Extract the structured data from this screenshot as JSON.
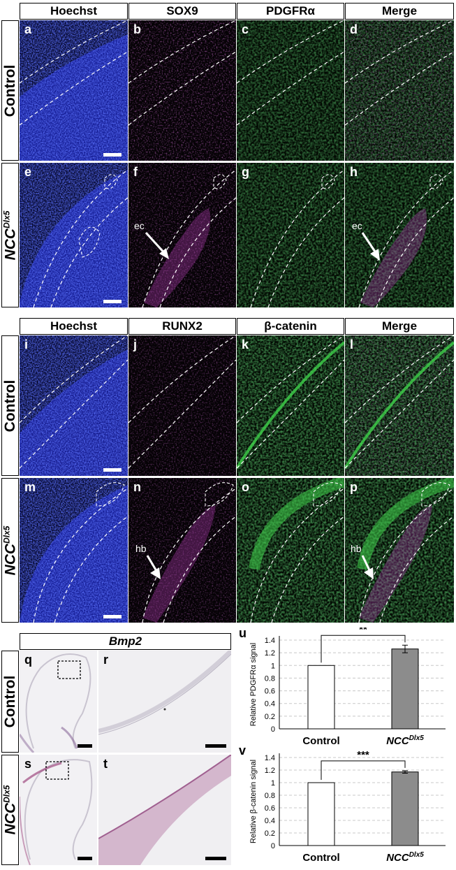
{
  "top_headers": [
    "Hoechst",
    "SOX9",
    "PDGFRα",
    "Merge"
  ],
  "mid_headers": [
    "Hoechst",
    "RUNX2",
    "β-catenin",
    "Merge"
  ],
  "row_labels": {
    "control": "Control",
    "ncc_base": "NCC",
    "ncc_sup": "Dlx5"
  },
  "letters_top": [
    "a",
    "b",
    "c",
    "d",
    "e",
    "f",
    "g",
    "h"
  ],
  "letters_mid": [
    "i",
    "j",
    "k",
    "l",
    "m",
    "n",
    "o",
    "p"
  ],
  "letters_bottom": [
    "q",
    "r",
    "s",
    "t"
  ],
  "annotations": {
    "ec": "ec",
    "hb": "hb"
  },
  "bmp2_header": "Bmp2",
  "colors": {
    "hoechst": "#2a3ad8",
    "sox9": "#c040c0",
    "pdgfra": "#2fa83a",
    "runx2": "#c040c0",
    "bcatenin": "#38b848",
    "bar_control": "#ffffff",
    "bar_mutant": "#8c8c8c"
  },
  "chart_data": [
    {
      "type": "bar",
      "panel": "u",
      "categories": [
        "Control",
        "NCC^Dlx5"
      ],
      "category_labels": {
        "control": "Control",
        "mutant_base": "NCC",
        "mutant_sup": "Dlx5"
      },
      "values": [
        1.0,
        1.26
      ],
      "errors": [
        0.0,
        0.06
      ],
      "ylabel": "Relative PDGFRα signal",
      "ylim": [
        0,
        1.4
      ],
      "yticks": [
        "0",
        "0.2",
        "0.4",
        "0.6",
        "0.8",
        "1",
        "1.2",
        "1.4"
      ],
      "significance": "**",
      "grid": true
    },
    {
      "type": "bar",
      "panel": "v",
      "categories": [
        "Control",
        "NCC^Dlx5"
      ],
      "category_labels": {
        "control": "Control",
        "mutant_base": "NCC",
        "mutant_sup": "Dlx5"
      },
      "values": [
        1.0,
        1.17
      ],
      "errors": [
        0.0,
        0.02
      ],
      "ylabel": "Relative β-catenin signal",
      "ylim": [
        0,
        1.4
      ],
      "yticks": [
        "0",
        "0.2",
        "0.4",
        "0.6",
        "0.8",
        "1",
        "1.2",
        "1.4"
      ],
      "significance": "***",
      "grid": true
    }
  ]
}
